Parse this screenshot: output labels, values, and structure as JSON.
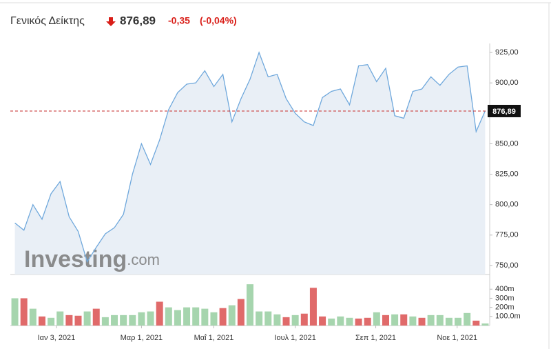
{
  "header": {
    "title": "Γενικός Δείκτης",
    "last": "876,89",
    "change": "-0,35",
    "change_pct": "(-0,04%)"
  },
  "watermark": {
    "brand": "Investing",
    "suffix": ".com"
  },
  "chart_data": [
    {
      "type": "area",
      "color": "#6fa8dc",
      "fill": "#e9eff6",
      "values": [
        785,
        779,
        800,
        788,
        809,
        819,
        790,
        778,
        753,
        765,
        776,
        781,
        792,
        825,
        850,
        833,
        853,
        878,
        892,
        899,
        900,
        910,
        897,
        907,
        868,
        887,
        903,
        925,
        905,
        907,
        887,
        875,
        868,
        865,
        888,
        893,
        895,
        882,
        914,
        915,
        901,
        912,
        873,
        871,
        893,
        895,
        905,
        898,
        907,
        913,
        914,
        860,
        877
      ],
      "xlim": [
        -0.5,
        52.5
      ],
      "ylim": [
        742.6,
        932.4
      ],
      "yticks": [
        {
          "value": 750,
          "label": "750,00"
        },
        {
          "value": 775,
          "label": "775,00"
        },
        {
          "value": 800,
          "label": "800,00"
        },
        {
          "value": 825,
          "label": "825,00"
        },
        {
          "value": 850,
          "label": "850,00"
        },
        {
          "value": 900,
          "label": "900,00"
        },
        {
          "value": 925,
          "label": "925,00"
        }
      ],
      "reference_line": {
        "value": 876.89,
        "label": "876,89",
        "color": "#c62828"
      }
    },
    {
      "type": "bar",
      "values": [
        300,
        300,
        185,
        100,
        85,
        155,
        115,
        108,
        155,
        185,
        92,
        115,
        115,
        115,
        146,
        155,
        262,
        200,
        170,
        200,
        200,
        185,
        146,
        192,
        223,
        292,
        454,
        155,
        155,
        123,
        92,
        115,
        131,
        415,
        100,
        77,
        100,
        85,
        77,
        85,
        146,
        115,
        123,
        123,
        100,
        85,
        115,
        115,
        85,
        85,
        138,
        54,
        23
      ],
      "colors": [
        "#a6d5ae",
        "#e06a6a",
        "#a6d5ae",
        "#e06a6a",
        "#a6d5ae",
        "#a6d5ae",
        "#e06a6a",
        "#e06a6a",
        "#a6d5ae",
        "#e06a6a",
        "#a6d5ae",
        "#a6d5ae",
        "#a6d5ae",
        "#a6d5ae",
        "#a6d5ae",
        "#a6d5ae",
        "#e06a6a",
        "#a6d5ae",
        "#a6d5ae",
        "#a6d5ae",
        "#a6d5ae",
        "#a6d5ae",
        "#a6d5ae",
        "#e06a6a",
        "#a6d5ae",
        "#e06a6a",
        "#a6d5ae",
        "#a6d5ae",
        "#a6d5ae",
        "#a6d5ae",
        "#e06a6a",
        "#a6d5ae",
        "#e06a6a",
        "#e06a6a",
        "#e06a6a",
        "#a6d5ae",
        "#a6d5ae",
        "#a6d5ae",
        "#e06a6a",
        "#e06a6a",
        "#a6d5ae",
        "#e06a6a",
        "#a6d5ae",
        "#e06a6a",
        "#a6d5ae",
        "#e06a6a",
        "#a6d5ae",
        "#a6d5ae",
        "#a6d5ae",
        "#a6d5ae",
        "#a6d5ae",
        "#e06a6a",
        "#a6d5ae"
      ],
      "xlim": [
        -0.5,
        52.5
      ],
      "ylim": [
        0,
        546
      ],
      "yticks": [
        {
          "value": 100,
          "label": "100.0m"
        },
        {
          "value": 200,
          "label": "200m"
        },
        {
          "value": 300,
          "label": "300m"
        },
        {
          "value": 400,
          "label": "400m"
        }
      ],
      "xticks": [
        {
          "value": 4.6,
          "label": "Ιαν 3, 2021"
        },
        {
          "value": 14.0,
          "label": "Μαρ 1, 2021"
        },
        {
          "value": 22.0,
          "label": "Μαΐ 1, 2021"
        },
        {
          "value": 31.0,
          "label": "Ιουλ 1, 2021"
        },
        {
          "value": 39.9,
          "label": "Σεπ 1, 2021"
        },
        {
          "value": 48.9,
          "label": "Νοε 1, 2021"
        }
      ]
    }
  ]
}
